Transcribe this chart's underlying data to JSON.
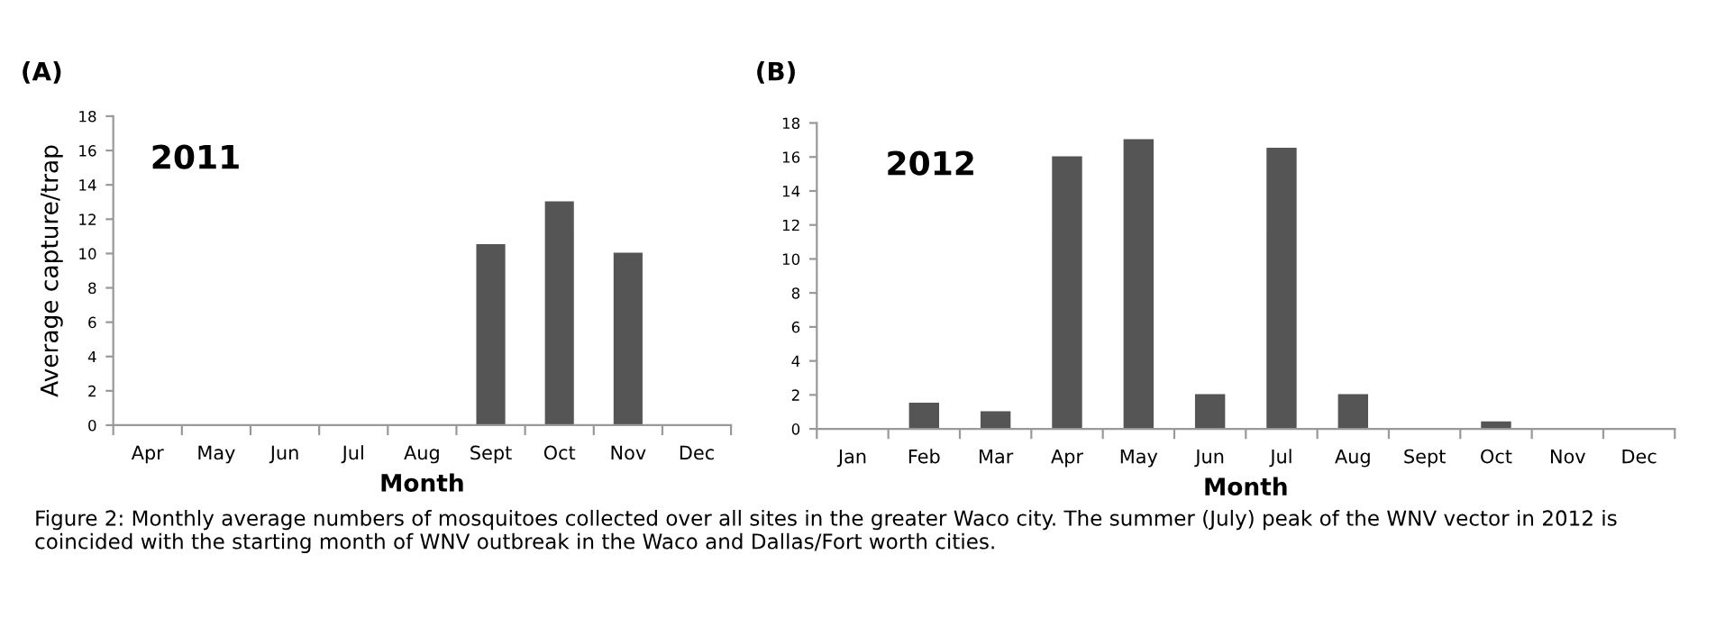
{
  "chart_data": [
    {
      "type": "bar",
      "title": "(A)",
      "ylabel": "Average capture/trap",
      "xlabel": "Month",
      "categories": [
        "Apr",
        "May",
        "Jun",
        "Jul",
        "Aug",
        "Sept",
        "Oct",
        "Nov",
        "Dec"
      ],
      "values": [
        0,
        0,
        0,
        0,
        0,
        10.5,
        13,
        10,
        0
      ],
      "color": "#555555",
      "ylim": [
        0,
        18
      ],
      "yticks": [
        0,
        2,
        4,
        6,
        8,
        10,
        12,
        14,
        16,
        18
      ],
      "grid": false,
      "legend": false,
      "annotations": [
        "2011"
      ]
    },
    {
      "type": "bar",
      "title": "(B)",
      "xlabel": "Month",
      "categories": [
        "Jan",
        "Feb",
        "Mar",
        "Apr",
        "May",
        "Jun",
        "Jul",
        "Aug",
        "Sept",
        "Oct",
        "Nov",
        "Dec"
      ],
      "values": [
        0,
        1.5,
        1,
        16,
        17,
        2,
        16.5,
        2,
        0,
        0.4,
        0,
        0
      ],
      "color": "#555555",
      "ylim": [
        0,
        18
      ],
      "yticks": [
        0,
        2,
        4,
        6,
        8,
        10,
        12,
        14,
        16,
        18
      ],
      "grid": false,
      "legend": false,
      "annotations": [
        "2012",
        "Figure 2: Monthly average numbers of mosquitoes collected over all sites in the greater Waco city. The summer (July) peak of the WNV vector in 2012 is coincided with the starting month of WNV outbreak in the Waco and Dallas/Fort worth cities."
      ]
    }
  ]
}
